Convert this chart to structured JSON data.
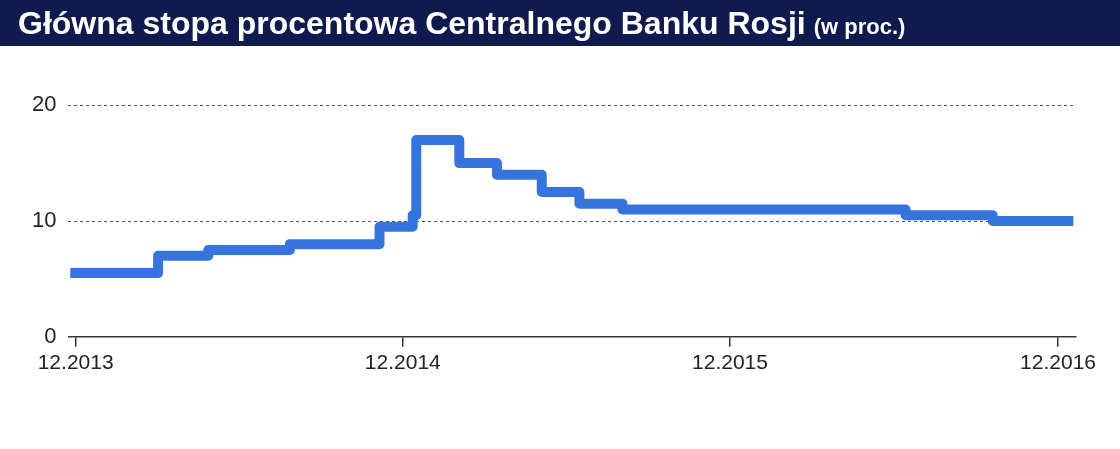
{
  "chart_data": {
    "type": "step",
    "title": "Główna stopa procentowa Centralnego Banku Rosji",
    "subtitle": "(w proc.)",
    "x": [
      "2013-11-25",
      "2014-03-03",
      "2014-04-28",
      "2014-07-28",
      "2014-11-05",
      "2014-12-12",
      "2014-12-16",
      "2015-02-02",
      "2015-03-16",
      "2015-05-05",
      "2015-06-16",
      "2015-08-03",
      "2016-06-14",
      "2016-09-19",
      "2016-12-18"
    ],
    "series": [
      {
        "color": "#3574dc",
        "values": [
          5.5,
          7,
          7.5,
          8,
          9.5,
          10.5,
          17,
          15,
          14,
          12.5,
          11.5,
          11,
          10.5,
          10,
          10
        ]
      }
    ],
    "xlim": [
      "2013-11-23",
      "2016-12-21"
    ],
    "xticks": [
      {
        "value": "2013-12-01",
        "label": "12.2013"
      },
      {
        "value": "2014-12-01",
        "label": "12.2014"
      },
      {
        "value": "2015-12-01",
        "label": "12.2015"
      },
      {
        "value": "2016-12-01",
        "label": "12.2016"
      }
    ],
    "ylim": [
      0,
      20
    ],
    "yticks": [
      0,
      10,
      20
    ],
    "grid": "y",
    "legend": false,
    "line_style": "solid",
    "marker": "none"
  }
}
